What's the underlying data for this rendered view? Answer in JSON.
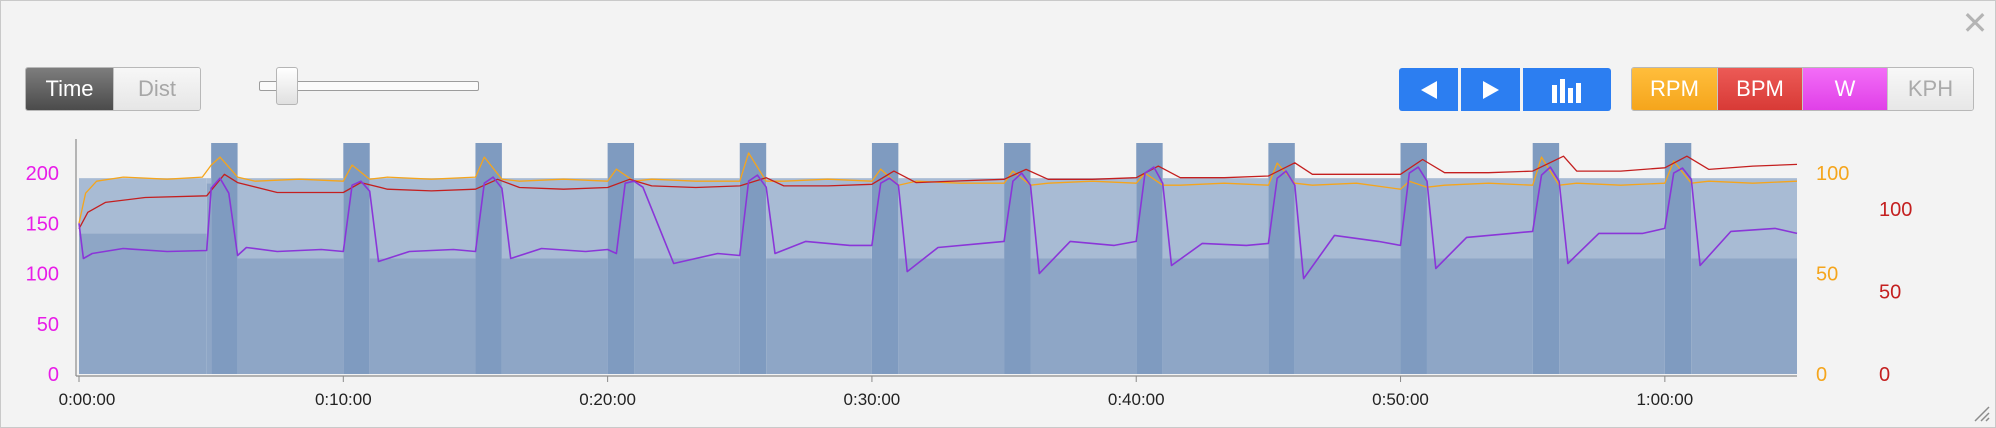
{
  "toolbar": {
    "close_icon": "close-icon",
    "mode_toggle": {
      "time_label": "Time",
      "dist_label": "Dist",
      "selected": "Time"
    },
    "zoom_slider_level": 0.12,
    "nav_buttons": [
      {
        "name": "previous-button",
        "icon": "triangle-left-icon"
      },
      {
        "name": "next-button",
        "icon": "triangle-right-icon"
      },
      {
        "name": "chart-type-button",
        "icon": "bar-chart-icon"
      }
    ],
    "metrics": [
      {
        "key": "rpm",
        "label": "RPM",
        "active": true,
        "color": "#f5a51c"
      },
      {
        "key": "bpm",
        "label": "BPM",
        "active": true,
        "color": "#d83a36"
      },
      {
        "key": "w",
        "label": "W",
        "active": true,
        "color": "#e040e8"
      },
      {
        "key": "kph",
        "label": "KPH",
        "active": false,
        "color": "#aaaaaa"
      }
    ]
  },
  "chart_data": {
    "type": "line",
    "x_unit": "seconds",
    "xlim": [
      0,
      3900
    ],
    "x_tick_labels": [
      "0:00:00",
      "0:10:00",
      "0:20:00",
      "0:30:00",
      "0:40:00",
      "0:50:00",
      "1:00:00"
    ],
    "x_tick_values": [
      0,
      600,
      1200,
      1800,
      2400,
      3000,
      3600
    ],
    "axes": {
      "watts": {
        "ticks": [
          "0",
          "50",
          "100",
          "150",
          "200"
        ],
        "lim": [
          0,
          230
        ],
        "color": "#e81ce8",
        "side": "left"
      },
      "rpm": {
        "ticks": [
          "0",
          "50",
          "100"
        ],
        "lim": [
          0,
          115
        ],
        "color": "#f5a51c",
        "side": "right-inner"
      },
      "bpm": {
        "ticks": [
          "0",
          "50",
          "100"
        ],
        "lim": [
          0,
          140
        ],
        "color": "#c41f1f",
        "side": "right-outer"
      }
    },
    "target_zones": {
      "base_watts": 140,
      "base_end_s": 290,
      "segments": [
        {
          "start_s": 290,
          "end_s": 300,
          "watts": 190
        },
        {
          "start_s": 300,
          "end_s": 360,
          "watts": 230
        },
        {
          "start_s": 360,
          "end_s": 600,
          "watts": 115
        },
        {
          "start_s": 600,
          "end_s": 660,
          "watts": 230
        },
        {
          "start_s": 660,
          "end_s": 900,
          "watts": 115
        },
        {
          "start_s": 900,
          "end_s": 960,
          "watts": 230
        },
        {
          "start_s": 960,
          "end_s": 1200,
          "watts": 115
        },
        {
          "start_s": 1200,
          "end_s": 1260,
          "watts": 230
        },
        {
          "start_s": 1260,
          "end_s": 1500,
          "watts": 115
        },
        {
          "start_s": 1500,
          "end_s": 1560,
          "watts": 230
        },
        {
          "start_s": 1560,
          "end_s": 1800,
          "watts": 115
        },
        {
          "start_s": 1800,
          "end_s": 1860,
          "watts": 230
        },
        {
          "start_s": 1860,
          "end_s": 2100,
          "watts": 115
        },
        {
          "start_s": 2100,
          "end_s": 2160,
          "watts": 230
        },
        {
          "start_s": 2160,
          "end_s": 2400,
          "watts": 115
        },
        {
          "start_s": 2400,
          "end_s": 2460,
          "watts": 230
        },
        {
          "start_s": 2460,
          "end_s": 2700,
          "watts": 115
        },
        {
          "start_s": 2700,
          "end_s": 2760,
          "watts": 230
        },
        {
          "start_s": 2760,
          "end_s": 3000,
          "watts": 115
        },
        {
          "start_s": 3000,
          "end_s": 3060,
          "watts": 230
        },
        {
          "start_s": 3060,
          "end_s": 3300,
          "watts": 115
        },
        {
          "start_s": 3300,
          "end_s": 3360,
          "watts": 230
        },
        {
          "start_s": 3360,
          "end_s": 3600,
          "watts": 115
        },
        {
          "start_s": 3600,
          "end_s": 3660,
          "watts": 230
        },
        {
          "start_s": 3660,
          "end_s": 3900,
          "watts": 115
        }
      ],
      "upper_band_watts": 195
    },
    "series": [
      {
        "name": "RPM",
        "axis": "rpm",
        "color": "#f5a51c",
        "x": [
          0,
          15,
          40,
          100,
          200,
          280,
          300,
          320,
          360,
          400,
          500,
          600,
          620,
          660,
          700,
          800,
          900,
          920,
          960,
          1000,
          1100,
          1200,
          1220,
          1260,
          1300,
          1400,
          1500,
          1520,
          1560,
          1600,
          1700,
          1800,
          1820,
          1860,
          1900,
          2000,
          2100,
          2120,
          2160,
          2200,
          2300,
          2400,
          2420,
          2460,
          2500,
          2600,
          2700,
          2720,
          2760,
          2800,
          2900,
          3000,
          3020,
          3060,
          3100,
          3200,
          3300,
          3320,
          3360,
          3400,
          3500,
          3600,
          3620,
          3660,
          3700,
          3800,
          3900
        ],
        "y": [
          75,
          90,
          96,
          98,
          97,
          98,
          104,
          108,
          98,
          96,
          97,
          96,
          104,
          97,
          98,
          97,
          98,
          108,
          97,
          96,
          97,
          96,
          102,
          96,
          97,
          96,
          96,
          110,
          96,
          96,
          97,
          96,
          102,
          94,
          96,
          95,
          95,
          101,
          94,
          95,
          96,
          95,
          100,
          94,
          94,
          95,
          94,
          105,
          95,
          94,
          95,
          92,
          96,
          93,
          94,
          95,
          94,
          108,
          94,
          95,
          94,
          95,
          106,
          95,
          96,
          95,
          96
        ]
      },
      {
        "name": "BPM",
        "axis": "bpm",
        "color": "#c41f1f",
        "x": [
          0,
          20,
          60,
          150,
          290,
          330,
          360,
          450,
          600,
          640,
          700,
          800,
          900,
          950,
          1000,
          1100,
          1200,
          1250,
          1300,
          1400,
          1500,
          1560,
          1600,
          1700,
          1800,
          1850,
          1900,
          2000,
          2100,
          2150,
          2200,
          2300,
          2400,
          2450,
          2500,
          2600,
          2700,
          2760,
          2800,
          2900,
          3000,
          3050,
          3100,
          3200,
          3300,
          3370,
          3400,
          3500,
          3600,
          3650,
          3700,
          3800,
          3900
        ],
        "y": [
          88,
          98,
          104,
          107,
          108,
          121,
          116,
          110,
          110,
          116,
          112,
          111,
          112,
          118,
          113,
          112,
          113,
          118,
          114,
          113,
          114,
          119,
          114,
          114,
          115,
          123,
          116,
          117,
          118,
          124,
          118,
          118,
          119,
          126,
          119,
          119,
          120,
          128,
          121,
          121,
          121,
          130,
          122,
          122,
          123,
          132,
          123,
          123,
          125,
          132,
          124,
          126,
          127
        ]
      },
      {
        "name": "W",
        "axis": "watts",
        "color": "#8a36d8",
        "x": [
          0,
          10,
          30,
          100,
          200,
          290,
          300,
          320,
          340,
          360,
          380,
          450,
          550,
          600,
          620,
          640,
          660,
          680,
          750,
          850,
          900,
          920,
          940,
          960,
          980,
          1050,
          1150,
          1200,
          1220,
          1240,
          1260,
          1280,
          1350,
          1450,
          1500,
          1520,
          1540,
          1560,
          1580,
          1650,
          1750,
          1800,
          1820,
          1840,
          1860,
          1880,
          1950,
          2050,
          2100,
          2120,
          2140,
          2160,
          2180,
          2250,
          2350,
          2400,
          2420,
          2440,
          2460,
          2480,
          2550,
          2650,
          2700,
          2720,
          2740,
          2760,
          2780,
          2850,
          2950,
          3000,
          3020,
          3040,
          3060,
          3080,
          3150,
          3250,
          3300,
          3320,
          3340,
          3360,
          3380,
          3450,
          3550,
          3600,
          3620,
          3640,
          3660,
          3680,
          3750,
          3850,
          3900
        ],
        "y": [
          150,
          115,
          120,
          125,
          122,
          123,
          185,
          195,
          180,
          118,
          126,
          122,
          124,
          122,
          188,
          192,
          182,
          112,
          122,
          124,
          122,
          190,
          196,
          185,
          115,
          125,
          122,
          124,
          120,
          190,
          192,
          186,
          110,
          120,
          118,
          192,
          198,
          186,
          120,
          132,
          128,
          128,
          190,
          195,
          188,
          102,
          126,
          130,
          132,
          192,
          200,
          188,
          100,
          132,
          128,
          132,
          200,
          206,
          190,
          108,
          130,
          128,
          130,
          195,
          202,
          188,
          95,
          138,
          132,
          128,
          200,
          206,
          192,
          105,
          136,
          140,
          142,
          198,
          206,
          192,
          110,
          140,
          140,
          145,
          200,
          205,
          194,
          108,
          142,
          145,
          140
        ]
      }
    ]
  }
}
